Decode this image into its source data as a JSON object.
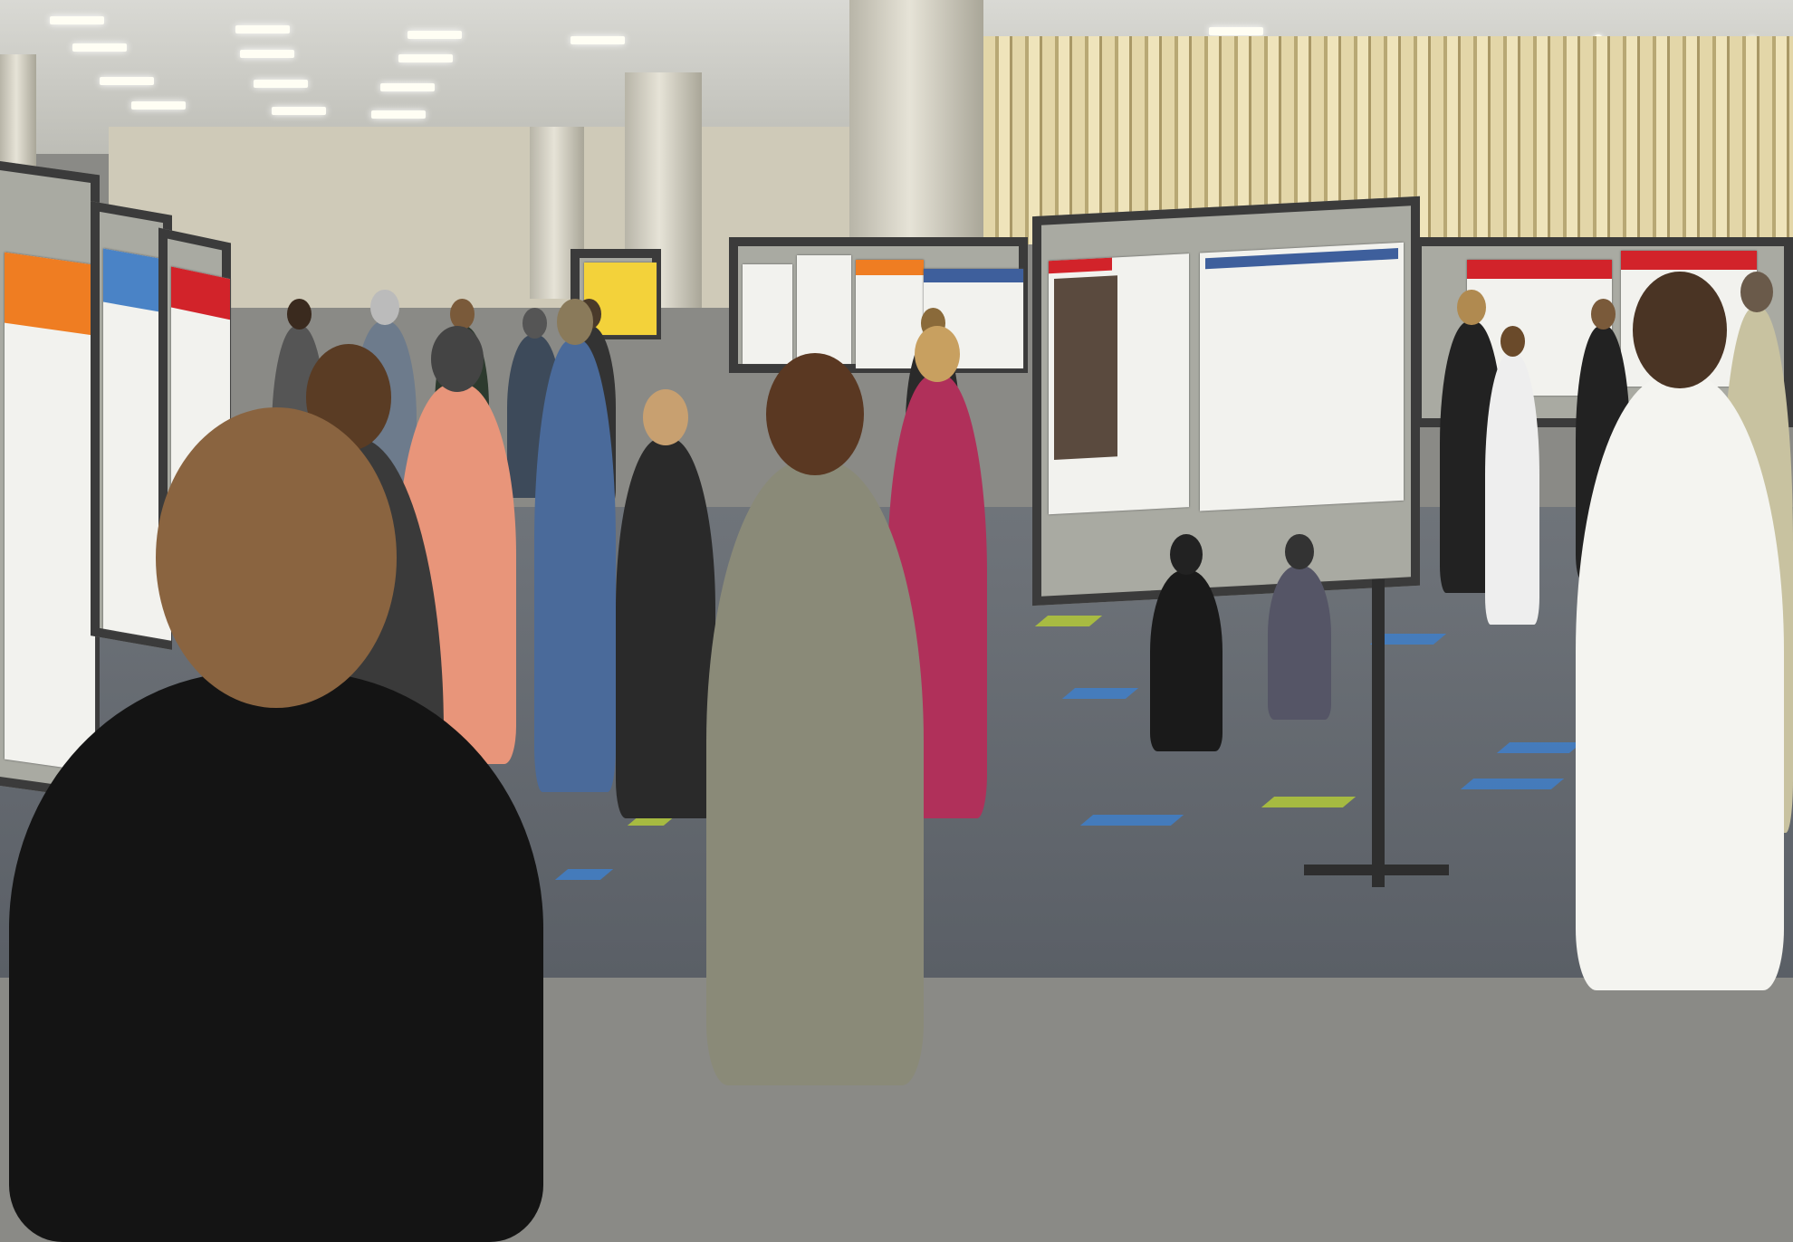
{
  "scene": {
    "description_type": "photo",
    "colors": {
      "ceiling": "#d9d9d4",
      "curtain": "#e3d6a8",
      "carpet": "#5f646b",
      "carpet_stripe_blue": "#3f7fc9",
      "carpet_stripe_green": "#b3c93a",
      "poster_board": "#a9aaa2",
      "board_frame": "#3b3b3b",
      "poster_accent_red": "#d2232a",
      "poster_accent_orange": "#ef7d22"
    }
  }
}
